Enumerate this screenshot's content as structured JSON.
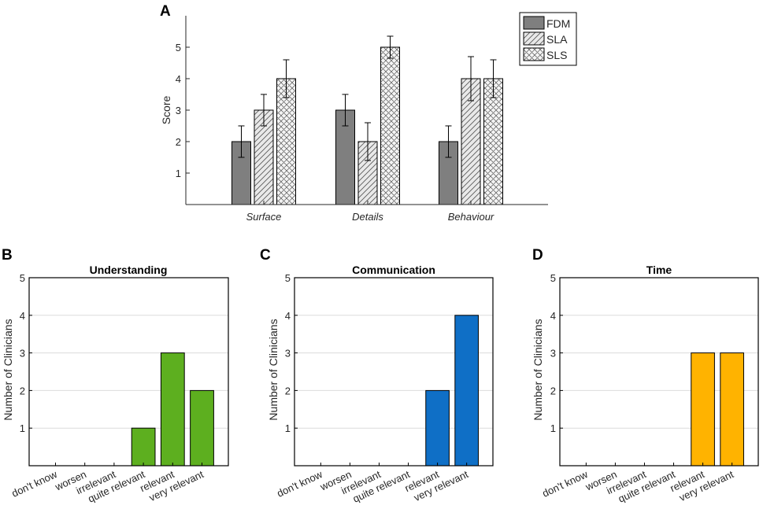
{
  "chart_data": [
    {
      "panel": "A",
      "type": "bar",
      "title": "",
      "xlabel": "",
      "ylabel": "Score",
      "ylim": [
        0,
        6
      ],
      "yticks": [
        1,
        2,
        3,
        4,
        5
      ],
      "categories": [
        "Surface",
        "Details",
        "Behaviour"
      ],
      "legend_position": "top-right",
      "series": [
        {
          "name": "FDM",
          "values": [
            2,
            3,
            2
          ],
          "errors": [
            0.5,
            0.5,
            0.5
          ],
          "color": "#7f7f7f",
          "pattern": "solid"
        },
        {
          "name": "SLA",
          "values": [
            3,
            2,
            4
          ],
          "errors": [
            0.5,
            0.6,
            0.7
          ],
          "color": "#e6e6e6",
          "pattern": "diagonal"
        },
        {
          "name": "SLS",
          "values": [
            4,
            5,
            4
          ],
          "errors": [
            0.6,
            0.35,
            0.6
          ],
          "color": "#f2f2f2",
          "pattern": "crosshatch"
        }
      ]
    },
    {
      "panel": "B",
      "type": "bar",
      "title": "Understanding",
      "ylabel": "Number of Clinicians",
      "ylim": [
        0,
        5
      ],
      "yticks": [
        1,
        2,
        3,
        4,
        5
      ],
      "grid": true,
      "categories": [
        "don't know",
        "worsen",
        "irrelevant",
        "quite relevant",
        "relevant",
        "very relevant"
      ],
      "values": [
        0,
        0,
        0,
        1,
        3,
        2
      ],
      "color": "#5daf1f"
    },
    {
      "panel": "C",
      "type": "bar",
      "title": "Communication",
      "ylabel": "Number of Clinicians",
      "ylim": [
        0,
        5
      ],
      "yticks": [
        1,
        2,
        3,
        4,
        5
      ],
      "grid": true,
      "categories": [
        "don't know",
        "worsen",
        "irrelevant",
        "quite relevant",
        "relevant",
        "very relevant"
      ],
      "values": [
        0,
        0,
        0,
        0,
        2,
        4
      ],
      "color": "#0f6fc6"
    },
    {
      "panel": "D",
      "type": "bar",
      "title": "Time",
      "ylabel": "Number of Clinicians",
      "ylim": [
        0,
        5
      ],
      "yticks": [
        1,
        2,
        3,
        4,
        5
      ],
      "grid": true,
      "categories": [
        "don't know",
        "worsen",
        "irrelevant",
        "quite relevant",
        "relevant",
        "very relevant"
      ],
      "values": [
        0,
        0,
        0,
        0,
        3,
        3
      ],
      "color": "#ffb300"
    }
  ]
}
